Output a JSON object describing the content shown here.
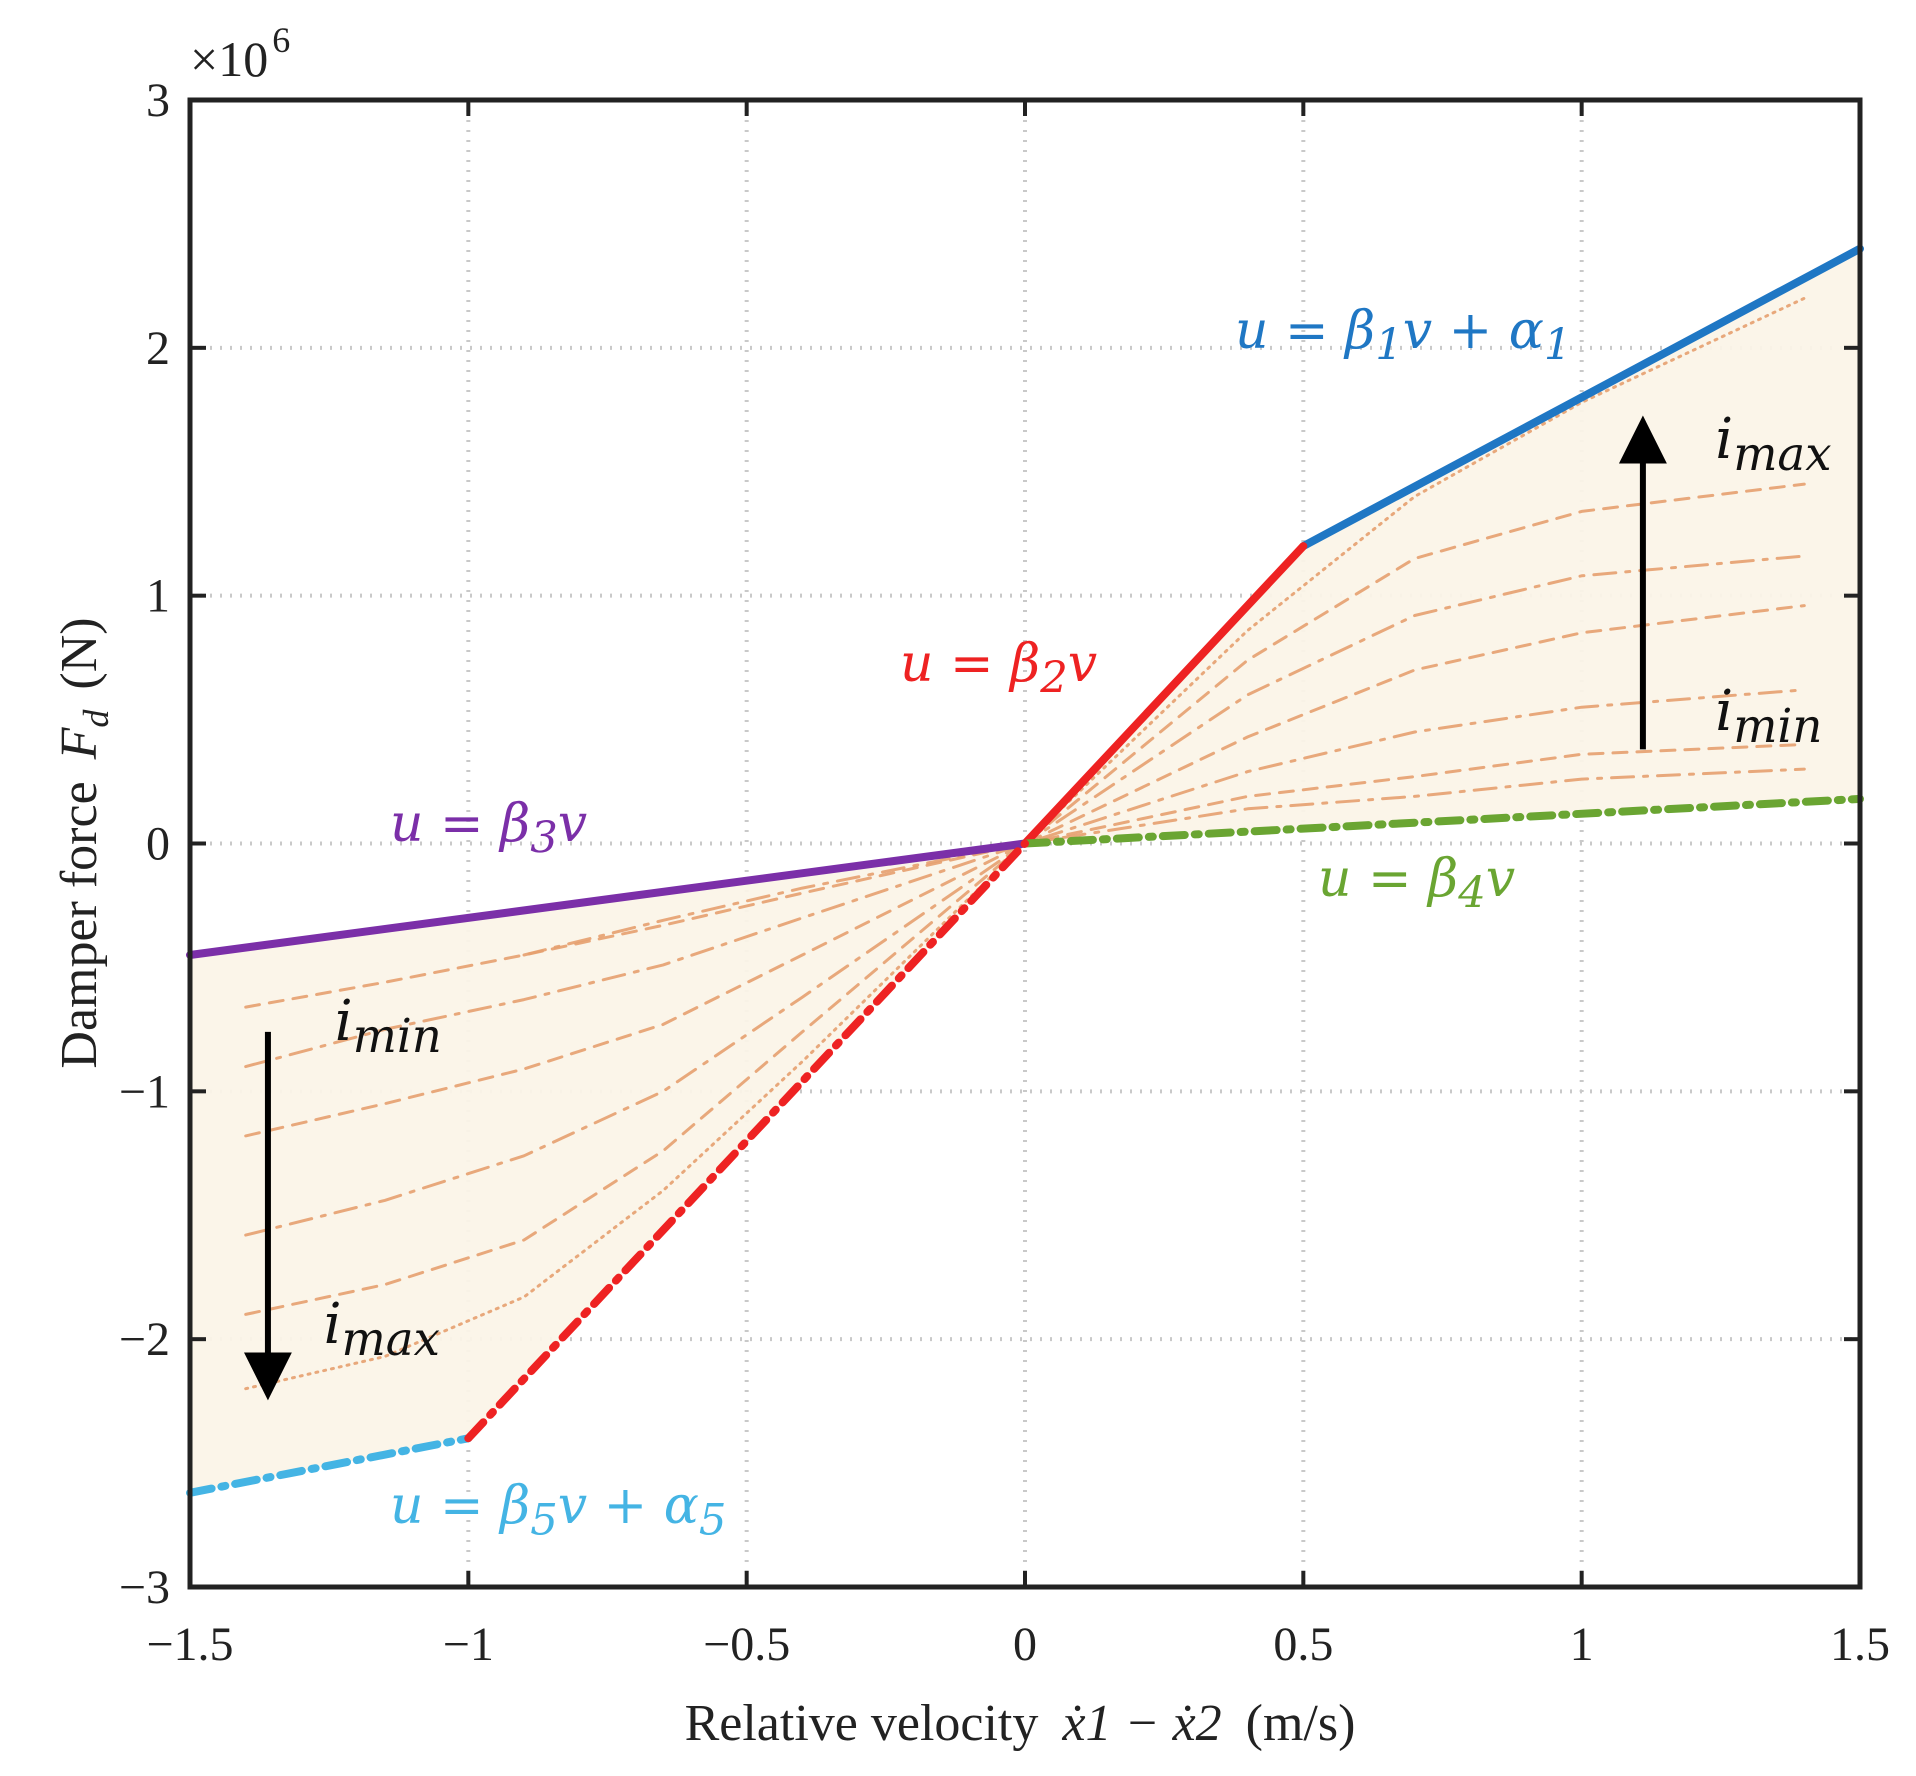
{
  "chart_data": {
    "type": "line",
    "xlabel": {
      "prefix": "Relative velocity",
      "expression": "ẋ1 − ẋ2",
      "units": "(m/s)"
    },
    "ylabel": {
      "prefix": "Damper force",
      "symbol": "F",
      "subscript": "d",
      "units": "(N)"
    },
    "y_multiplier": "×10",
    "y_multiplier_exponent": "6",
    "xlim": [
      -1.5,
      1.5
    ],
    "ylim": [
      -3000000,
      3000000
    ],
    "grid": true,
    "x_ticks": [
      "−1.5",
      "−1",
      "−0.5",
      "0",
      "0.5",
      "1",
      "1.5"
    ],
    "y_ticks": [
      "−3",
      "−2",
      "−1",
      "0",
      "1",
      "2",
      "3"
    ],
    "x_tick_values": [
      -1.5,
      -1,
      -0.5,
      0,
      0.5,
      1,
      1.5
    ],
    "y_tick_values": [
      -3000000,
      -2000000,
      -1000000,
      0,
      1000000,
      2000000,
      3000000
    ],
    "series": [
      {
        "label_html": "u = β<sub>1</sub>v + α<sub>1</sub>",
        "color": "#1f77c4",
        "style": "solid",
        "points": [
          [
            0.5,
            1200000
          ],
          [
            1.5,
            2400000
          ]
        ]
      },
      {
        "label_html": "u = β<sub>2</sub>v",
        "color": "#ee2222",
        "style": "solid",
        "points": [
          [
            0,
            0
          ],
          [
            0.5,
            1200000
          ]
        ]
      },
      {
        "label_html": "u = β<sub>3</sub>v",
        "color": "#7b2fa8",
        "style": "solid",
        "points": [
          [
            -1.5,
            -450000
          ],
          [
            0,
            0
          ]
        ]
      },
      {
        "label_html": "u = β<sub>4</sub>v",
        "color": "#6aa532",
        "style": "dashdot",
        "points": [
          [
            0,
            0
          ],
          [
            1.5,
            180000
          ]
        ]
      },
      {
        "label_html": "u = β<sub>5</sub>v + α<sub>5</sub>",
        "color": "#44b4e4",
        "style": "dashdot",
        "points": [
          [
            -1.5,
            -2620000
          ],
          [
            -1,
            -2400000
          ]
        ]
      },
      {
        "label_html": "",
        "color": "#ee2222",
        "style": "dashdot",
        "points": [
          [
            -1,
            -2400000
          ],
          [
            0,
            0
          ]
        ]
      }
    ],
    "intermediate_curves": [
      {
        "style": "dotted",
        "points": [
          [
            -1.4,
            -2200000
          ],
          [
            -1.15,
            -2070000
          ],
          [
            -0.9,
            -1830000
          ],
          [
            -0.65,
            -1400000
          ],
          [
            -0.4,
            -880000
          ],
          [
            0,
            0
          ],
          [
            0.4,
            860000
          ],
          [
            0.7,
            1400000
          ],
          [
            1.0,
            1780000
          ],
          [
            1.4,
            2200000
          ]
        ]
      },
      {
        "style": "dashed",
        "points": [
          [
            -1.4,
            -1900000
          ],
          [
            -1.15,
            -1780000
          ],
          [
            -0.9,
            -1600000
          ],
          [
            -0.65,
            -1240000
          ],
          [
            -0.4,
            -760000
          ],
          [
            0,
            0
          ],
          [
            0.4,
            740000
          ],
          [
            0.7,
            1150000
          ],
          [
            1.0,
            1340000
          ],
          [
            1.4,
            1450000
          ]
        ]
      },
      {
        "style": "dashdot",
        "points": [
          [
            -1.4,
            -1580000
          ],
          [
            -1.15,
            -1440000
          ],
          [
            -0.9,
            -1260000
          ],
          [
            -0.65,
            -1000000
          ],
          [
            -0.4,
            -620000
          ],
          [
            0,
            0
          ],
          [
            0.4,
            600000
          ],
          [
            0.7,
            920000
          ],
          [
            1.0,
            1080000
          ],
          [
            1.4,
            1160000
          ]
        ]
      },
      {
        "style": "dashed",
        "points": [
          [
            -1.4,
            -1180000
          ],
          [
            -1.15,
            -1050000
          ],
          [
            -0.9,
            -910000
          ],
          [
            -0.65,
            -730000
          ],
          [
            -0.4,
            -450000
          ],
          [
            0,
            0
          ],
          [
            0.4,
            430000
          ],
          [
            0.7,
            700000
          ],
          [
            1.0,
            850000
          ],
          [
            1.4,
            960000
          ]
        ]
      },
      {
        "style": "dashdot",
        "points": [
          [
            -1.4,
            -900000
          ],
          [
            -1.15,
            -750000
          ],
          [
            -0.9,
            -630000
          ],
          [
            -0.65,
            -490000
          ],
          [
            -0.4,
            -300000
          ],
          [
            0,
            0
          ],
          [
            0.4,
            290000
          ],
          [
            0.7,
            450000
          ],
          [
            1.0,
            550000
          ],
          [
            1.4,
            620000
          ]
        ]
      },
      {
        "style": "dashed",
        "points": [
          [
            -1.4,
            -660000
          ],
          [
            -1.15,
            -560000
          ],
          [
            -0.9,
            -450000
          ],
          [
            -0.65,
            -330000
          ],
          [
            -0.4,
            -200000
          ],
          [
            0,
            0
          ],
          [
            0.4,
            190000
          ],
          [
            0.7,
            270000
          ],
          [
            1.0,
            360000
          ],
          [
            1.4,
            400000
          ]
        ]
      },
      {
        "style": "dashdot",
        "points": [
          [
            -0.9,
            -450000
          ],
          [
            -0.65,
            -310000
          ],
          [
            -0.4,
            -180000
          ],
          [
            0,
            0
          ],
          [
            0.4,
            140000
          ],
          [
            0.7,
            190000
          ],
          [
            1.0,
            260000
          ],
          [
            1.4,
            300000
          ]
        ]
      }
    ],
    "annotations": [
      {
        "id": "top-imax",
        "html": "i<sub>max</sub>",
        "x": 1.24,
        "y": 1520000
      },
      {
        "id": "top-imin",
        "html": "i<sub>min</sub>",
        "x": 1.24,
        "y": 420000
      },
      {
        "id": "bottom-imin",
        "html": "i<sub>min</sub>",
        "x": -1.24,
        "y": -830000
      },
      {
        "id": "bottom-imax",
        "html": "i<sub>max</sub>",
        "x": -1.26,
        "y": -2050000
      }
    ],
    "arrows": [
      {
        "id": "arrow-up",
        "from": [
          1.11,
          380000
        ],
        "to": [
          1.11,
          1630000
        ]
      },
      {
        "id": "arrow-down",
        "from": [
          -1.36,
          -760000
        ],
        "to": [
          -1.36,
          -2150000
        ]
      }
    ]
  }
}
